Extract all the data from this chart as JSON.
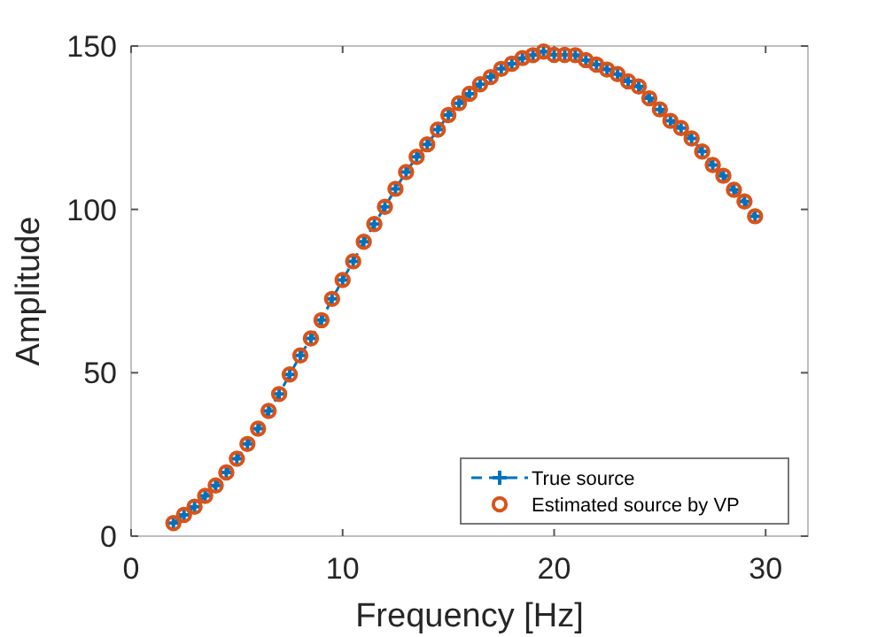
{
  "chart_data": {
    "type": "line",
    "xlabel": "Frequency [Hz]",
    "ylabel": "Amplitude",
    "xlim": [
      0,
      32
    ],
    "xticks": [
      0,
      10,
      20,
      30
    ],
    "ylim": [
      0,
      150
    ],
    "yticks": [
      0,
      50,
      100,
      150
    ],
    "grid": false,
    "legend": "bottom right",
    "x": [
      2,
      2.5,
      3,
      3.5,
      4,
      4.5,
      5,
      5.5,
      6,
      6.5,
      7,
      7.5,
      8,
      8.5,
      9,
      9.5,
      10,
      10.5,
      11,
      11.5,
      12,
      12.5,
      13,
      13.5,
      14,
      14.5,
      15,
      15.5,
      16,
      16.5,
      17,
      17.5,
      18,
      18.5,
      19,
      19.5,
      20,
      20.5,
      21,
      21.5,
      22,
      22.5,
      23,
      23.5,
      24,
      24.5,
      25,
      25.5,
      26,
      26.5,
      27,
      27.5,
      28,
      28.5,
      29,
      29.5
    ],
    "series": [
      {
        "name": "True source",
        "color": "#0072bd",
        "marker": "cross",
        "line_style": "dashed",
        "values": [
          4.0,
          6.5,
          9.0,
          12.3,
          15.5,
          19.5,
          23.7,
          28.2,
          32.9,
          38.3,
          43.5,
          49.5,
          55.3,
          60.5,
          66.1,
          72.6,
          78.4,
          84.1,
          90.1,
          95.5,
          100.8,
          106.3,
          111.4,
          116.1,
          119.9,
          124.4,
          128.9,
          132.5,
          135.4,
          138.3,
          140.5,
          143.0,
          144.6,
          146.3,
          147.2,
          148.3,
          147.3,
          147.3,
          147.2,
          145.7,
          144.3,
          142.8,
          141.4,
          139.2,
          137.6,
          134.0,
          130.6,
          127.1,
          124.9,
          121.7,
          117.7,
          113.6,
          110.3,
          106.0,
          102.4,
          97.9
        ]
      },
      {
        "name": "Estimated source by VP",
        "type": "scatter",
        "color": "#d95319",
        "marker": "circle",
        "values": [
          4.0,
          6.5,
          9.0,
          12.3,
          15.5,
          19.5,
          23.7,
          28.2,
          32.9,
          38.3,
          43.5,
          49.5,
          55.3,
          60.5,
          66.1,
          72.6,
          78.4,
          84.1,
          90.1,
          95.5,
          100.8,
          106.3,
          111.4,
          116.1,
          119.9,
          124.4,
          128.9,
          132.5,
          135.4,
          138.3,
          140.5,
          143.0,
          144.6,
          146.3,
          147.2,
          148.3,
          147.3,
          147.3,
          147.2,
          145.7,
          144.3,
          142.8,
          141.4,
          139.2,
          137.6,
          134.0,
          130.6,
          127.1,
          124.9,
          121.7,
          117.7,
          113.6,
          110.3,
          106.0,
          102.4,
          97.9
        ]
      }
    ]
  }
}
